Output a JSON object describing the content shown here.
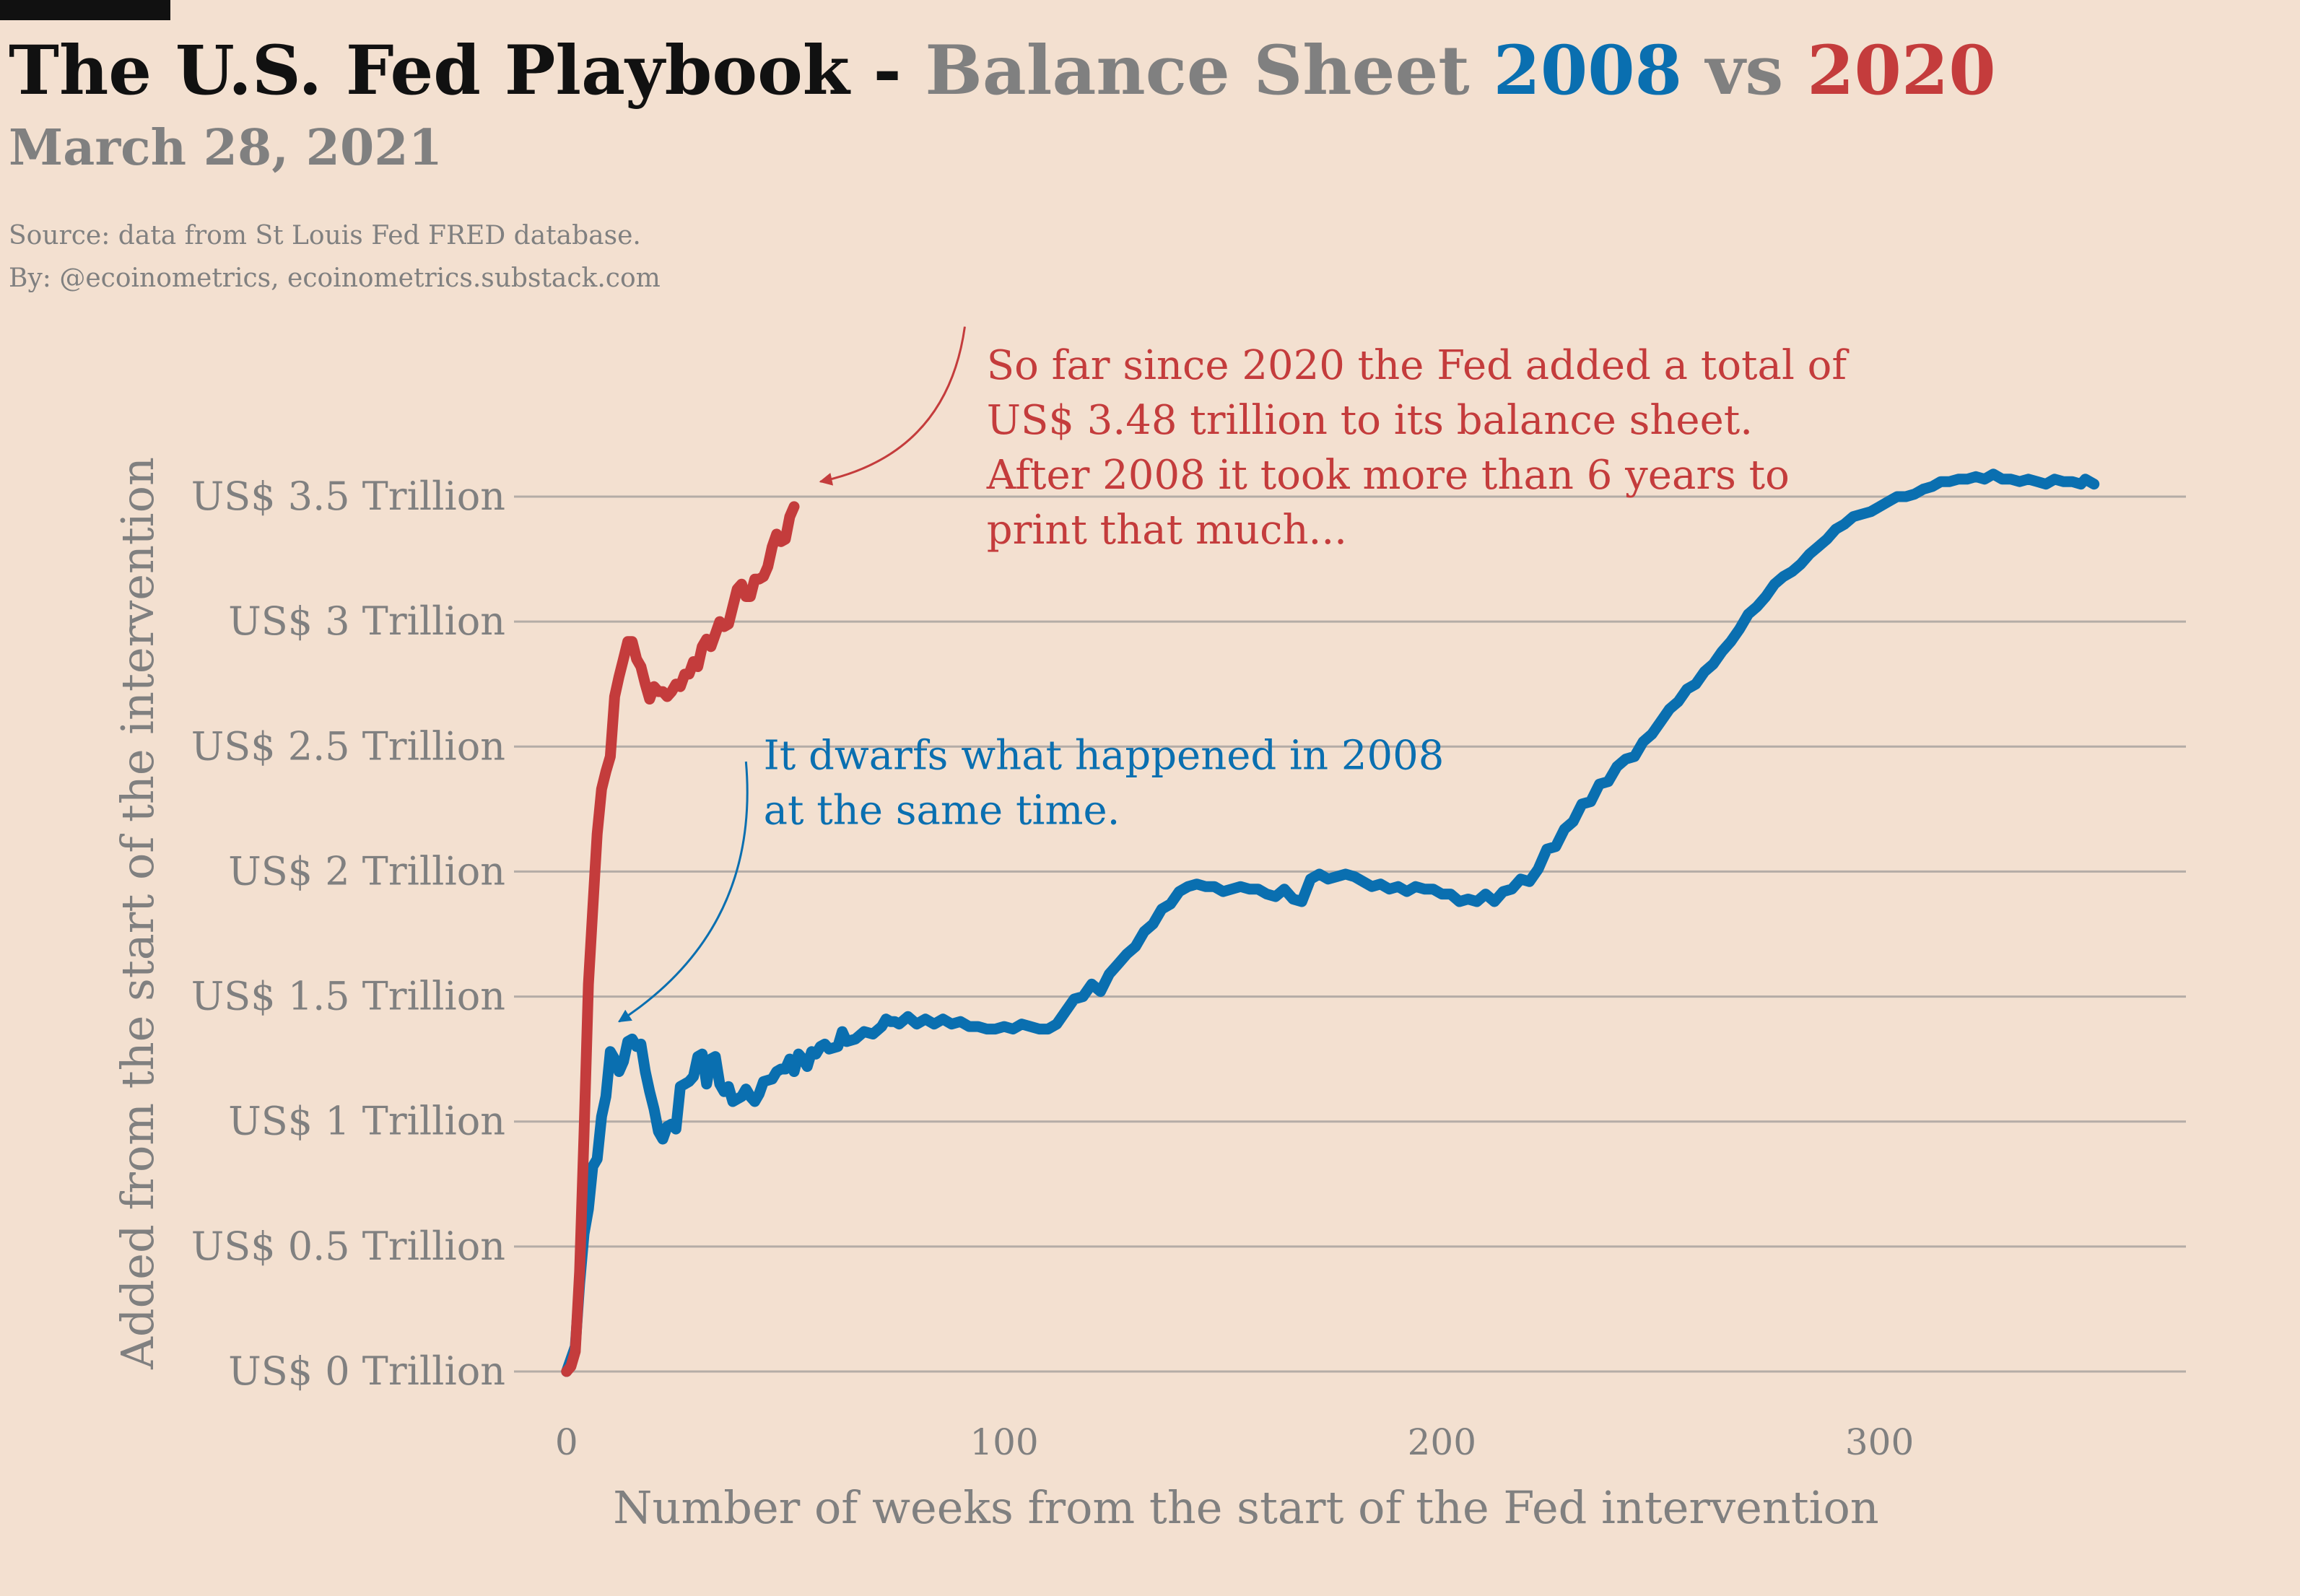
{
  "header": {
    "title_part1": "The U.S. Fed Playbook - ",
    "title_part2": "Balance Sheet ",
    "title_part3": "2008",
    "title_part4": " vs ",
    "title_part5": "2020",
    "subtitle": "March 28, 2021",
    "source_line1": "Source: data from  St Louis Fed FRED database.",
    "source_line2": "By: @ecoinometrics, ecoinometrics.substack.com"
  },
  "colors": {
    "background": "#f3e0d0",
    "series_2008": "#0a6fb0",
    "series_2020": "#c43c3c",
    "text_gray": "#808080",
    "title_dark": "#111111",
    "grid": "#b4aca6"
  },
  "chart_data": {
    "type": "line",
    "xlabel": "Number of weeks from the start of the Fed intervention",
    "ylabel": "Added from the start of the intervention",
    "xlim": [
      -12,
      370
    ],
    "ylim": [
      0,
      3.5
    ],
    "x_ticks": [
      {
        "value": 0,
        "label": "0"
      },
      {
        "value": 100,
        "label": "100"
      },
      {
        "value": 200,
        "label": "200"
      },
      {
        "value": 300,
        "label": "300"
      }
    ],
    "y_ticks": [
      {
        "value": 0,
        "label": "US$ 0 Trillion"
      },
      {
        "value": 0.5,
        "label": "US$ 0.5 Trillion"
      },
      {
        "value": 1,
        "label": "US$ 1 Trillion"
      },
      {
        "value": 1.5,
        "label": "US$ 1.5 Trillion"
      },
      {
        "value": 2,
        "label": "US$ 2 Trillion"
      },
      {
        "value": 2.5,
        "label": "US$ 2.5 Trillion"
      },
      {
        "value": 3,
        "label": "US$ 3 Trillion"
      },
      {
        "value": 3.5,
        "label": "US$ 3.5 Trillion"
      }
    ],
    "grid": true,
    "legend": "none",
    "series": [
      {
        "color": "#0a6fb0",
        "points": [
          [
            0,
            0
          ],
          [
            2,
            0.1
          ],
          [
            3,
            0.35
          ],
          [
            4,
            0.55
          ],
          [
            5,
            0.65
          ],
          [
            6,
            0.82
          ],
          [
            7,
            0.85
          ],
          [
            8,
            1.02
          ],
          [
            9,
            1.1
          ],
          [
            10,
            1.28
          ],
          [
            11,
            1.25
          ],
          [
            12,
            1.2
          ],
          [
            13,
            1.24
          ],
          [
            14,
            1.32
          ],
          [
            15,
            1.33
          ],
          [
            16,
            1.3
          ],
          [
            17,
            1.31
          ],
          [
            18,
            1.2
          ],
          [
            19,
            1.12
          ],
          [
            20,
            1.05
          ],
          [
            21,
            0.96
          ],
          [
            22,
            0.93
          ],
          [
            23,
            0.98
          ],
          [
            24,
            0.99
          ],
          [
            25,
            0.97
          ],
          [
            26,
            1.14
          ],
          [
            27,
            1.15
          ],
          [
            28,
            1.16
          ],
          [
            29,
            1.18
          ],
          [
            30,
            1.26
          ],
          [
            31,
            1.27
          ],
          [
            32,
            1.15
          ],
          [
            33,
            1.25
          ],
          [
            34,
            1.26
          ],
          [
            35,
            1.15
          ],
          [
            36,
            1.12
          ],
          [
            37,
            1.14
          ],
          [
            38,
            1.08
          ],
          [
            39,
            1.09
          ],
          [
            40,
            1.1
          ],
          [
            41,
            1.13
          ],
          [
            42,
            1.1
          ],
          [
            43,
            1.08
          ],
          [
            44,
            1.11
          ],
          [
            45,
            1.16
          ],
          [
            47,
            1.17
          ],
          [
            48,
            1.2
          ],
          [
            49,
            1.21
          ],
          [
            50,
            1.21
          ],
          [
            51,
            1.25
          ],
          [
            52,
            1.2
          ],
          [
            53,
            1.27
          ],
          [
            54,
            1.25
          ],
          [
            55,
            1.22
          ],
          [
            56,
            1.28
          ],
          [
            57,
            1.27
          ],
          [
            58,
            1.3
          ],
          [
            59,
            1.31
          ],
          [
            60,
            1.29
          ],
          [
            62,
            1.3
          ],
          [
            63,
            1.36
          ],
          [
            64,
            1.32
          ],
          [
            66,
            1.33
          ],
          [
            68,
            1.36
          ],
          [
            70,
            1.35
          ],
          [
            72,
            1.38
          ],
          [
            73,
            1.41
          ],
          [
            74,
            1.4
          ],
          [
            75,
            1.4
          ],
          [
            76,
            1.39
          ],
          [
            78,
            1.42
          ],
          [
            80,
            1.39
          ],
          [
            82,
            1.41
          ],
          [
            84,
            1.39
          ],
          [
            86,
            1.41
          ],
          [
            88,
            1.39
          ],
          [
            90,
            1.4
          ],
          [
            92,
            1.38
          ],
          [
            94,
            1.38
          ],
          [
            96,
            1.37
          ],
          [
            98,
            1.37
          ],
          [
            100,
            1.38
          ],
          [
            102,
            1.37
          ],
          [
            104,
            1.39
          ],
          [
            106,
            1.38
          ],
          [
            108,
            1.37
          ],
          [
            110,
            1.37
          ],
          [
            112,
            1.39
          ],
          [
            114,
            1.44
          ],
          [
            116,
            1.49
          ],
          [
            118,
            1.5
          ],
          [
            120,
            1.55
          ],
          [
            122,
            1.52
          ],
          [
            124,
            1.59
          ],
          [
            126,
            1.63
          ],
          [
            128,
            1.67
          ],
          [
            130,
            1.7
          ],
          [
            132,
            1.76
          ],
          [
            134,
            1.79
          ],
          [
            136,
            1.85
          ],
          [
            138,
            1.87
          ],
          [
            140,
            1.92
          ],
          [
            142,
            1.94
          ],
          [
            144,
            1.95
          ],
          [
            146,
            1.94
          ],
          [
            148,
            1.94
          ],
          [
            150,
            1.92
          ],
          [
            152,
            1.93
          ],
          [
            154,
            1.94
          ],
          [
            156,
            1.93
          ],
          [
            158,
            1.93
          ],
          [
            160,
            1.91
          ],
          [
            162,
            1.9
          ],
          [
            164,
            1.93
          ],
          [
            166,
            1.89
          ],
          [
            168,
            1.88
          ],
          [
            170,
            1.97
          ],
          [
            172,
            1.99
          ],
          [
            174,
            1.97
          ],
          [
            176,
            1.98
          ],
          [
            178,
            1.99
          ],
          [
            180,
            1.98
          ],
          [
            182,
            1.96
          ],
          [
            184,
            1.94
          ],
          [
            186,
            1.95
          ],
          [
            188,
            1.93
          ],
          [
            190,
            1.94
          ],
          [
            192,
            1.92
          ],
          [
            194,
            1.94
          ],
          [
            196,
            1.93
          ],
          [
            198,
            1.93
          ],
          [
            200,
            1.91
          ],
          [
            202,
            1.91
          ],
          [
            204,
            1.88
          ],
          [
            206,
            1.89
          ],
          [
            208,
            1.88
          ],
          [
            210,
            1.91
          ],
          [
            212,
            1.88
          ],
          [
            214,
            1.92
          ],
          [
            216,
            1.93
          ],
          [
            218,
            1.97
          ],
          [
            220,
            1.96
          ],
          [
            222,
            2.01
          ],
          [
            224,
            2.09
          ],
          [
            226,
            2.1
          ],
          [
            228,
            2.17
          ],
          [
            230,
            2.2
          ],
          [
            232,
            2.27
          ],
          [
            234,
            2.28
          ],
          [
            236,
            2.35
          ],
          [
            238,
            2.36
          ],
          [
            240,
            2.42
          ],
          [
            242,
            2.45
          ],
          [
            244,
            2.46
          ],
          [
            246,
            2.52
          ],
          [
            248,
            2.55
          ],
          [
            250,
            2.6
          ],
          [
            252,
            2.65
          ],
          [
            254,
            2.68
          ],
          [
            256,
            2.73
          ],
          [
            258,
            2.75
          ],
          [
            260,
            2.8
          ],
          [
            262,
            2.83
          ],
          [
            264,
            2.88
          ],
          [
            266,
            2.92
          ],
          [
            268,
            2.97
          ],
          [
            270,
            3.03
          ],
          [
            272,
            3.06
          ],
          [
            274,
            3.1
          ],
          [
            276,
            3.15
          ],
          [
            278,
            3.18
          ],
          [
            280,
            3.2
          ],
          [
            282,
            3.23
          ],
          [
            284,
            3.27
          ],
          [
            286,
            3.3
          ],
          [
            288,
            3.33
          ],
          [
            290,
            3.37
          ],
          [
            292,
            3.39
          ],
          [
            294,
            3.42
          ],
          [
            296,
            3.43
          ],
          [
            298,
            3.44
          ],
          [
            300,
            3.46
          ],
          [
            302,
            3.48
          ],
          [
            304,
            3.5
          ],
          [
            306,
            3.5
          ],
          [
            308,
            3.51
          ],
          [
            310,
            3.53
          ],
          [
            312,
            3.54
          ],
          [
            314,
            3.56
          ],
          [
            316,
            3.56
          ],
          [
            318,
            3.57
          ],
          [
            320,
            3.57
          ],
          [
            322,
            3.58
          ],
          [
            324,
            3.57
          ],
          [
            326,
            3.59
          ],
          [
            328,
            3.57
          ],
          [
            330,
            3.57
          ],
          [
            332,
            3.56
          ],
          [
            334,
            3.57
          ],
          [
            336,
            3.56
          ],
          [
            338,
            3.55
          ],
          [
            340,
            3.57
          ],
          [
            342,
            3.56
          ],
          [
            344,
            3.56
          ],
          [
            346,
            3.55
          ],
          [
            347,
            3.57
          ],
          [
            349,
            3.55
          ]
        ]
      },
      {
        "color": "#c43c3c",
        "points": [
          [
            0,
            0
          ],
          [
            1,
            0.02
          ],
          [
            2,
            0.08
          ],
          [
            3,
            0.4
          ],
          [
            4,
            0.95
          ],
          [
            5,
            1.55
          ],
          [
            6,
            1.85
          ],
          [
            7,
            2.15
          ],
          [
            8,
            2.33
          ],
          [
            9,
            2.4
          ],
          [
            10,
            2.46
          ],
          [
            11,
            2.7
          ],
          [
            12,
            2.78
          ],
          [
            13,
            2.85
          ],
          [
            14,
            2.92
          ],
          [
            15,
            2.92
          ],
          [
            16,
            2.85
          ],
          [
            17,
            2.82
          ],
          [
            18,
            2.75
          ],
          [
            19,
            2.69
          ],
          [
            20,
            2.74
          ],
          [
            21,
            2.72
          ],
          [
            22,
            2.72
          ],
          [
            23,
            2.7
          ],
          [
            24,
            2.72
          ],
          [
            25,
            2.75
          ],
          [
            26,
            2.74
          ],
          [
            27,
            2.79
          ],
          [
            28,
            2.79
          ],
          [
            29,
            2.84
          ],
          [
            30,
            2.82
          ],
          [
            31,
            2.9
          ],
          [
            32,
            2.93
          ],
          [
            33,
            2.9
          ],
          [
            34,
            2.95
          ],
          [
            35,
            3.0
          ],
          [
            36,
            2.98
          ],
          [
            37,
            2.99
          ],
          [
            38,
            3.06
          ],
          [
            39,
            3.13
          ],
          [
            40,
            3.15
          ],
          [
            41,
            3.1
          ],
          [
            42,
            3.1
          ],
          [
            43,
            3.17
          ],
          [
            44,
            3.17
          ],
          [
            45,
            3.18
          ],
          [
            46,
            3.22
          ],
          [
            47,
            3.3
          ],
          [
            48,
            3.35
          ],
          [
            49,
            3.32
          ],
          [
            50,
            3.33
          ],
          [
            51,
            3.42
          ],
          [
            52,
            3.46
          ]
        ]
      }
    ],
    "annotations": [
      {
        "text_lines": [
          "So far since 2020 the Fed added a total  of",
          "US$ 3.48 trillion to its balance sheet.",
          "After 2008 it took more than 6 years to",
          "print that much..."
        ],
        "color": "#c43c3c",
        "text_x": 96,
        "text_y": 3.97,
        "arrow_from": [
          91,
          4.18
        ],
        "arrow_to": [
          58,
          3.56
        ],
        "arrow_bend": -0.35
      },
      {
        "text_lines": [
          "It dwarfs what happened in 2008",
          "at the same time."
        ],
        "color": "#0a6fb0",
        "text_x": 45,
        "text_y": 2.41,
        "arrow_from": [
          41,
          2.44
        ],
        "arrow_to": [
          12,
          1.4
        ],
        "arrow_bend": -0.3
      }
    ]
  }
}
